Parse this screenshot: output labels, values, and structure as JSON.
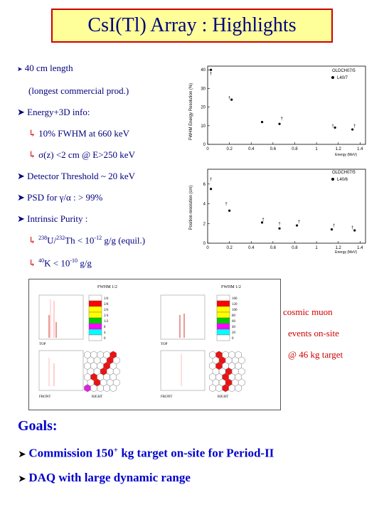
{
  "title": "CsI(Tl) Array : Highlights",
  "bullets": {
    "b1": "40 cm length",
    "b1b": "(longest commercial prod.)",
    "b2": "Energy+3D info:",
    "b2a": "10% FWHM at 660 keV",
    "b2b_sym": "σ",
    "b2b": "(z) <2 cm  @  E>250 keV",
    "b3": "Detector Threshold ~ 20 keV",
    "b4_pre": "PSD for ",
    "b4_sym": "γ/α",
    "b4_post": " : > 99%",
    "b5": "Intrinsic Purity :",
    "b5a_sup1": "238",
    "b5a_u": "U/",
    "b5a_sup2": "232",
    "b5a_th": "Th < 10",
    "b5a_sup3": "-12",
    "b5a_post": " g/g (equil.)",
    "b5b_sup1": "40",
    "b5b_k": "K < 10",
    "b5b_sup2": "-10",
    "b5b_post": " g/g"
  },
  "plots": {
    "top": {
      "ylabel": "FWHM Energy Resolution (%)",
      "xlabel": "Energy (MeV)",
      "legend": [
        "OLDCH07/5",
        "L40/7"
      ],
      "yticks": [
        "0",
        "10",
        "20",
        "30",
        "40"
      ],
      "xticks": [
        "0",
        "0.2",
        "0.4",
        "0.6",
        "0.8",
        "1",
        "1.2",
        "1.4"
      ]
    },
    "bottom": {
      "ylabel": "Position resolution (cm)",
      "xlabel": "Energy (MeV)",
      "legend": [
        "OLDCH07/5",
        "L40/6"
      ],
      "yticks": [
        "0",
        "2",
        "4",
        "6"
      ],
      "xticks": [
        "0",
        "0.2",
        "0.4",
        "0.6",
        "0.8",
        "1",
        "1.2",
        "1.4"
      ]
    }
  },
  "chart_data": [
    {
      "type": "scatter",
      "title": "",
      "xlabel": "Energy (MeV)",
      "ylabel": "FWHM Energy Resolution (%)",
      "xlim": [
        0,
        1.45
      ],
      "ylim": [
        0,
        42
      ],
      "series": [
        {
          "name": "OLDCH07/5",
          "x": [
            0.03,
            0.2,
            0.68,
            1.15,
            1.35
          ],
          "y": [
            38,
            25,
            14,
            10,
            10
          ]
        },
        {
          "name": "L40/7",
          "x": [
            0.03,
            0.22,
            0.5,
            0.66,
            1.17,
            1.33
          ],
          "y": [
            40,
            24,
            12,
            11,
            9,
            8
          ]
        }
      ]
    },
    {
      "type": "scatter",
      "title": "",
      "xlabel": "Energy (MeV)",
      "ylabel": "Position resolution (cm)",
      "xlim": [
        0,
        1.45
      ],
      "ylim": [
        0,
        7.5
      ],
      "series": [
        {
          "name": "OLDCH07/5",
          "x": [
            0.03,
            0.17,
            0.51,
            0.66,
            0.84,
            1.16,
            1.33
          ],
          "y": [
            6.5,
            4.0,
            2.4,
            2.0,
            2.2,
            1.8,
            1.6
          ]
        },
        {
          "name": "L40/6",
          "x": [
            0.03,
            0.2,
            0.5,
            0.66,
            0.82,
            1.14,
            1.35
          ],
          "y": [
            5.5,
            3.3,
            2.1,
            1.5,
            1.8,
            1.4,
            1.3
          ]
        }
      ]
    }
  ],
  "event_display": {
    "panel1_title": "FWHM 1/2",
    "panel2_title": "FWHM 1/2",
    "top_label": "TOP",
    "front_label": "FRONT",
    "right_label": "RIGHT",
    "scale": [
      "160",
      "120",
      "100",
      "80",
      "60",
      "40",
      "20",
      "0"
    ],
    "scale2": [
      "1/6",
      "2/8",
      "2/6",
      "2/4",
      "1/2",
      "8",
      "4",
      "0"
    ],
    "colors": [
      "#ffffff",
      "#ff0000",
      "#ffff00",
      "#ffff00",
      "#00cc00",
      "#ff00ff",
      "#00ffff",
      "#ffffff"
    ]
  },
  "muon_text": {
    "l1": "cosmic muon",
    "l2": "events  on-site",
    "l3": "@ 46 kg target"
  },
  "goals": {
    "title": "Goals:",
    "g1_pre": "Commission 150",
    "g1_sup": "+",
    "g1_post": " kg target on-site for Period-II",
    "g2": "DAQ with large dynamic range"
  }
}
